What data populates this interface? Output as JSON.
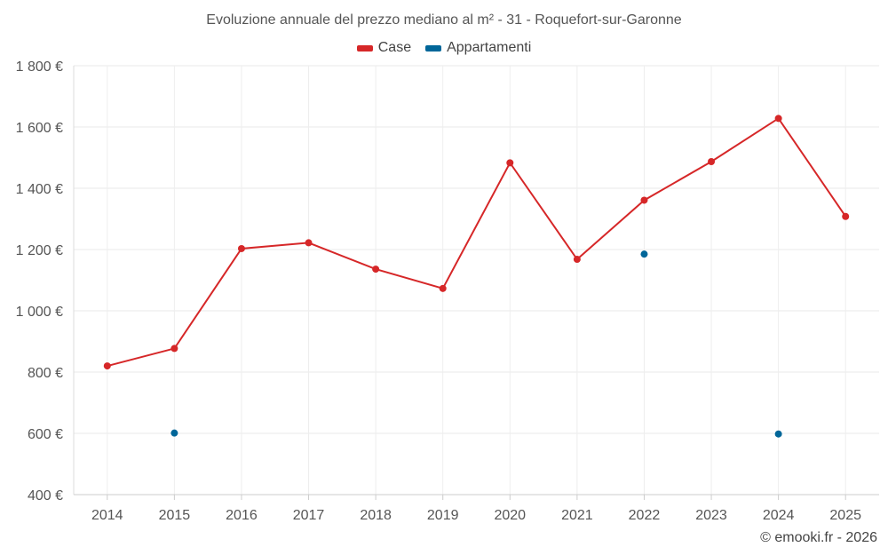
{
  "chart_data": {
    "type": "line",
    "title": "Evoluzione annuale del prezzo mediano al m² - 31 - Roquefort-sur-Garonne",
    "categories": [
      "2014",
      "2015",
      "2016",
      "2017",
      "2018",
      "2019",
      "2020",
      "2021",
      "2022",
      "2023",
      "2024",
      "2025"
    ],
    "ylim": [
      400,
      1800
    ],
    "yticks": [
      400,
      600,
      800,
      1000,
      1200,
      1400,
      1600,
      1800
    ],
    "ytick_labels": [
      "400 €",
      "600 €",
      "800 €",
      "1 000 €",
      "1 200 €",
      "1 400 €",
      "1 600 €",
      "1 800 €"
    ],
    "grid": true,
    "legend_position": "top-center",
    "series": [
      {
        "name": "Case",
        "color": "#d62728",
        "values": [
          820,
          877,
          1203,
          1222,
          1136,
          1073,
          1483,
          1168,
          1361,
          1487,
          1628,
          1308
        ]
      },
      {
        "name": "Appartamenti",
        "color": "#006699",
        "values": [
          null,
          601,
          null,
          null,
          null,
          null,
          null,
          null,
          1185,
          null,
          598,
          null
        ]
      }
    ]
  },
  "credit": "© emooki.fr - 2026"
}
